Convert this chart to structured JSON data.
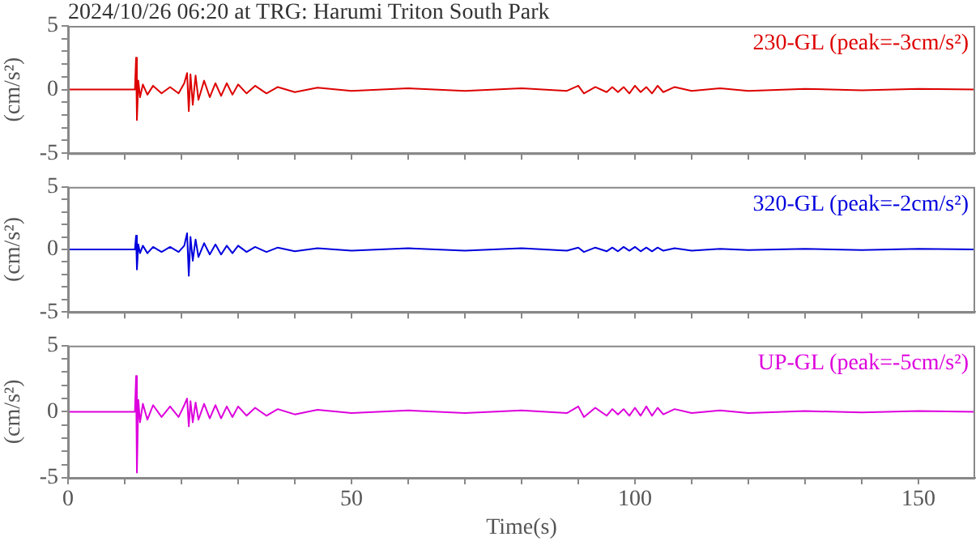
{
  "chart_data": [
    {
      "type": "line",
      "title": "2024/10/26 06:20 at TRG: Harumi Triton South Park",
      "ylabel": "(cm/s²)",
      "xlim": [
        0,
        160
      ],
      "ylim": [
        -5,
        5
      ],
      "xticks": [
        0,
        {
          "value": 10,
          "label": null
        },
        {
          "value": 20,
          "label": null
        },
        {
          "value": 30,
          "label": null
        },
        {
          "value": 40,
          "label": null
        },
        50,
        {
          "value": 60,
          "label": null
        },
        {
          "value": 70,
          "label": null
        },
        {
          "value": 80,
          "label": null
        },
        {
          "value": 90,
          "label": null
        },
        100,
        {
          "value": 110,
          "label": null
        },
        {
          "value": 120,
          "label": null
        },
        {
          "value": 130,
          "label": null
        },
        {
          "value": 140,
          "label": null
        },
        150
      ],
      "yticks": [
        -5,
        {
          "value": -4,
          "label": null
        },
        {
          "value": -3,
          "label": null
        },
        {
          "value": -2,
          "label": null
        },
        {
          "value": -1,
          "label": null
        },
        0,
        {
          "value": 1,
          "label": null
        },
        {
          "value": 2,
          "label": null
        },
        {
          "value": 3,
          "label": null
        },
        {
          "value": 4,
          "label": null
        },
        5
      ],
      "tick_labels": "y",
      "x": [
        0,
        11.8,
        12,
        12.15,
        12.4,
        12.7,
        13.2,
        14,
        15,
        16.5,
        18,
        19.5,
        20.5,
        21,
        21.3,
        21.6,
        22,
        22.5,
        23,
        24,
        25,
        26,
        27,
        28,
        29,
        30,
        31.5,
        33,
        35,
        37,
        40,
        44,
        50,
        60,
        70,
        80,
        88,
        90,
        91,
        93,
        95,
        96,
        97,
        98,
        99,
        100,
        101,
        102,
        103,
        104,
        105,
        107,
        110,
        115,
        120,
        130,
        140,
        150,
        160
      ],
      "series": [
        {
          "name": "230-GL (peak=-3cm/s²)",
          "color": "#dd0000",
          "values": [
            0,
            0,
            2.5,
            -2.4,
            0.7,
            -0.6,
            0.4,
            -0.4,
            0.3,
            -0.3,
            0.2,
            -0.3,
            0.5,
            1.3,
            -1.7,
            1.2,
            -1.2,
            1.1,
            -0.8,
            0.7,
            -0.6,
            0.5,
            -0.5,
            0.5,
            -0.4,
            0.4,
            -0.3,
            0.3,
            -0.3,
            0.2,
            -0.2,
            0.15,
            -0.1,
            0.1,
            -0.1,
            0.1,
            -0.1,
            0.3,
            -0.3,
            0.2,
            -0.2,
            0.2,
            -0.2,
            0.2,
            -0.3,
            0.3,
            -0.2,
            0.2,
            -0.3,
            0.3,
            -0.2,
            0.2,
            -0.1,
            0.1,
            -0.1,
            0.05,
            -0.05,
            0.05,
            0
          ]
        }
      ]
    },
    {
      "type": "line",
      "ylabel": "(cm/s²)",
      "xlim": [
        0,
        160
      ],
      "ylim": [
        -5,
        5
      ],
      "xticks": [
        0,
        {
          "value": 10,
          "label": null
        },
        {
          "value": 20,
          "label": null
        },
        {
          "value": 30,
          "label": null
        },
        {
          "value": 40,
          "label": null
        },
        50,
        {
          "value": 60,
          "label": null
        },
        {
          "value": 70,
          "label": null
        },
        {
          "value": 80,
          "label": null
        },
        {
          "value": 90,
          "label": null
        },
        100,
        {
          "value": 110,
          "label": null
        },
        {
          "value": 120,
          "label": null
        },
        {
          "value": 130,
          "label": null
        },
        {
          "value": 140,
          "label": null
        },
        150
      ],
      "yticks": [
        -5,
        {
          "value": -4,
          "label": null
        },
        {
          "value": -3,
          "label": null
        },
        {
          "value": -2,
          "label": null
        },
        {
          "value": -1,
          "label": null
        },
        0,
        {
          "value": 1,
          "label": null
        },
        {
          "value": 2,
          "label": null
        },
        {
          "value": 3,
          "label": null
        },
        {
          "value": 4,
          "label": null
        },
        5
      ],
      "tick_labels": "y",
      "x": [
        0,
        11.8,
        12,
        12.15,
        12.4,
        12.7,
        13.2,
        14,
        15,
        16.5,
        18,
        19.5,
        20.5,
        21,
        21.3,
        21.6,
        22,
        22.5,
        23,
        24,
        25,
        26,
        27,
        28,
        29,
        30,
        31.5,
        33,
        35,
        37,
        40,
        44,
        50,
        60,
        70,
        80,
        88,
        90,
        91,
        93,
        95,
        96,
        97,
        98,
        99,
        100,
        101,
        102,
        103,
        104,
        105,
        107,
        110,
        115,
        120,
        130,
        140,
        150,
        160
      ],
      "series": [
        {
          "name": "320-GL (peak=-2cm/s²)",
          "color": "#0000dd",
          "values": [
            0,
            0,
            1.1,
            -1.6,
            0.4,
            -0.3,
            0.3,
            -0.3,
            0.2,
            -0.2,
            0.2,
            -0.2,
            0.3,
            1.3,
            -2.1,
            1.0,
            -0.9,
            0.8,
            -0.6,
            0.5,
            -0.4,
            0.4,
            -0.4,
            0.3,
            -0.3,
            0.3,
            -0.2,
            0.2,
            -0.2,
            0.15,
            -0.15,
            0.1,
            -0.1,
            0.1,
            -0.1,
            0.1,
            -0.1,
            0.15,
            -0.2,
            0.15,
            -0.15,
            0.15,
            -0.15,
            0.2,
            -0.1,
            0.2,
            -0.15,
            0.15,
            -0.15,
            0.15,
            -0.1,
            0.1,
            -0.1,
            0.05,
            -0.05,
            0.05,
            -0.05,
            0.05,
            0
          ]
        }
      ]
    },
    {
      "type": "line",
      "xlabel": "Time(s)",
      "ylabel": "(cm/s²)",
      "xlim": [
        0,
        160
      ],
      "ylim": [
        -5,
        5
      ],
      "xticks": [
        0,
        {
          "value": 10,
          "label": null
        },
        {
          "value": 20,
          "label": null
        },
        {
          "value": 30,
          "label": null
        },
        {
          "value": 40,
          "label": null
        },
        50,
        {
          "value": 60,
          "label": null
        },
        {
          "value": 70,
          "label": null
        },
        {
          "value": 80,
          "label": null
        },
        {
          "value": 90,
          "label": null
        },
        100,
        {
          "value": 110,
          "label": null
        },
        {
          "value": 120,
          "label": null
        },
        {
          "value": 130,
          "label": null
        },
        {
          "value": 140,
          "label": null
        },
        150
      ],
      "yticks": [
        -5,
        {
          "value": -4,
          "label": null
        },
        {
          "value": -3,
          "label": null
        },
        {
          "value": -2,
          "label": null
        },
        {
          "value": -1,
          "label": null
        },
        0,
        {
          "value": 1,
          "label": null
        },
        {
          "value": 2,
          "label": null
        },
        {
          "value": 3,
          "label": null
        },
        {
          "value": 4,
          "label": null
        },
        5
      ],
      "x": [
        0,
        11.8,
        12,
        12.15,
        12.4,
        12.7,
        13.2,
        14,
        15,
        16.5,
        18,
        19.5,
        20.5,
        21,
        21.3,
        21.6,
        22,
        22.5,
        23,
        24,
        25,
        26,
        27,
        28,
        29,
        30,
        31.5,
        33,
        35,
        37,
        40,
        44,
        50,
        60,
        70,
        80,
        88,
        90,
        91,
        93,
        95,
        96,
        97,
        98,
        99,
        100,
        101,
        102,
        103,
        104,
        105,
        107,
        110,
        115,
        120,
        130,
        140,
        150,
        160
      ],
      "series": [
        {
          "name": "UP-GL (peak=-5cm/s²)",
          "color": "#dd00dd",
          "values": [
            0,
            0,
            2.7,
            -4.6,
            0.9,
            -0.8,
            0.6,
            -0.6,
            0.5,
            -0.4,
            0.4,
            -0.4,
            0.5,
            1.0,
            -1.1,
            0.8,
            -0.8,
            0.7,
            -0.6,
            0.6,
            -0.5,
            0.5,
            -0.5,
            0.4,
            -0.4,
            0.4,
            -0.3,
            0.3,
            -0.3,
            0.2,
            -0.2,
            0.15,
            -0.1,
            0.1,
            -0.1,
            0.1,
            -0.1,
            0.4,
            -0.4,
            0.3,
            -0.3,
            0.2,
            -0.2,
            0.2,
            -0.3,
            0.3,
            -0.3,
            0.4,
            -0.3,
            0.3,
            -0.2,
            0.2,
            -0.1,
            0.1,
            -0.1,
            0.05,
            -0.05,
            0.05,
            0
          ]
        }
      ]
    }
  ]
}
